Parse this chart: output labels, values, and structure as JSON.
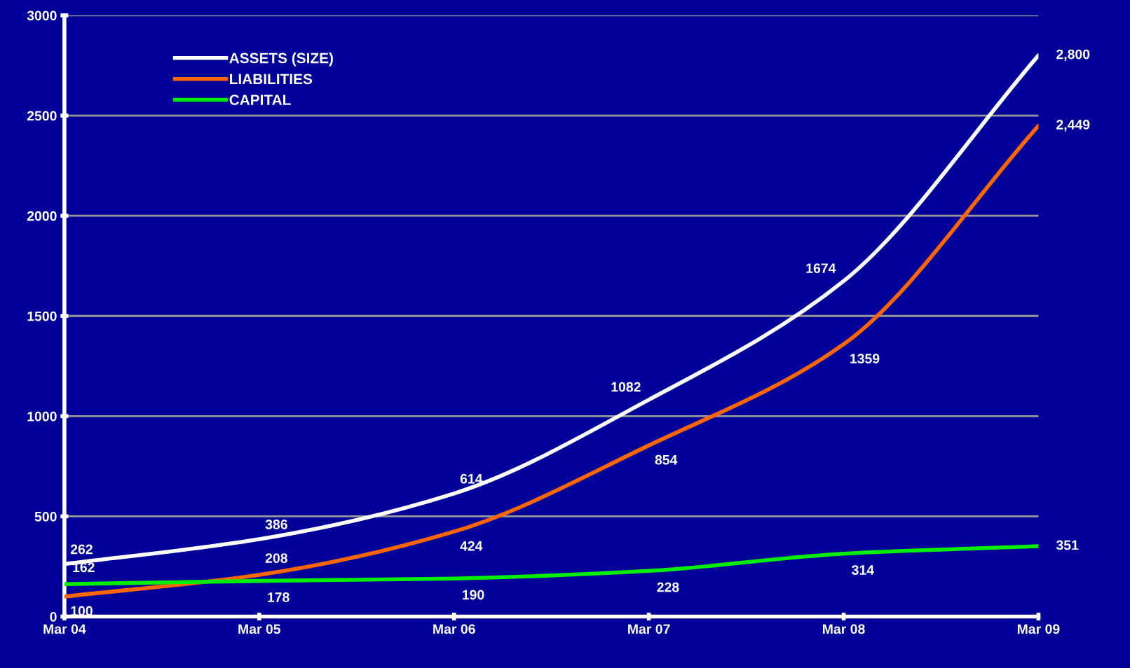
{
  "chart_data": {
    "type": "line",
    "categories": [
      "Mar 04",
      "Mar 05",
      "Mar 06",
      "Mar 07",
      "Mar 08",
      "Mar 09"
    ],
    "series": [
      {
        "name": "ASSETS (SIZE)",
        "color": "#ffffff",
        "values": [
          262,
          386,
          614,
          1082,
          1674,
          2800
        ],
        "value_labels": [
          "262",
          "386",
          "614",
          "1082",
          "1674",
          "2,800"
        ]
      },
      {
        "name": "LIABILITIES",
        "color": "#ff6600",
        "values": [
          100,
          208,
          424,
          854,
          1359,
          2449
        ],
        "value_labels": [
          "100",
          "208",
          "424",
          "854",
          "1359",
          "2,449"
        ]
      },
      {
        "name": "CAPITAL",
        "color": "#00ee00",
        "values": [
          162,
          178,
          190,
          228,
          314,
          351
        ],
        "value_labels": [
          "162",
          "178",
          "190",
          "228",
          "314",
          "351"
        ]
      }
    ],
    "ylim": [
      0,
      3000
    ],
    "yticks": [
      0,
      500,
      1000,
      1500,
      2000,
      2500,
      3000
    ],
    "grid": "y",
    "legend": "top left",
    "marker": "none",
    "line_style": "solid"
  }
}
